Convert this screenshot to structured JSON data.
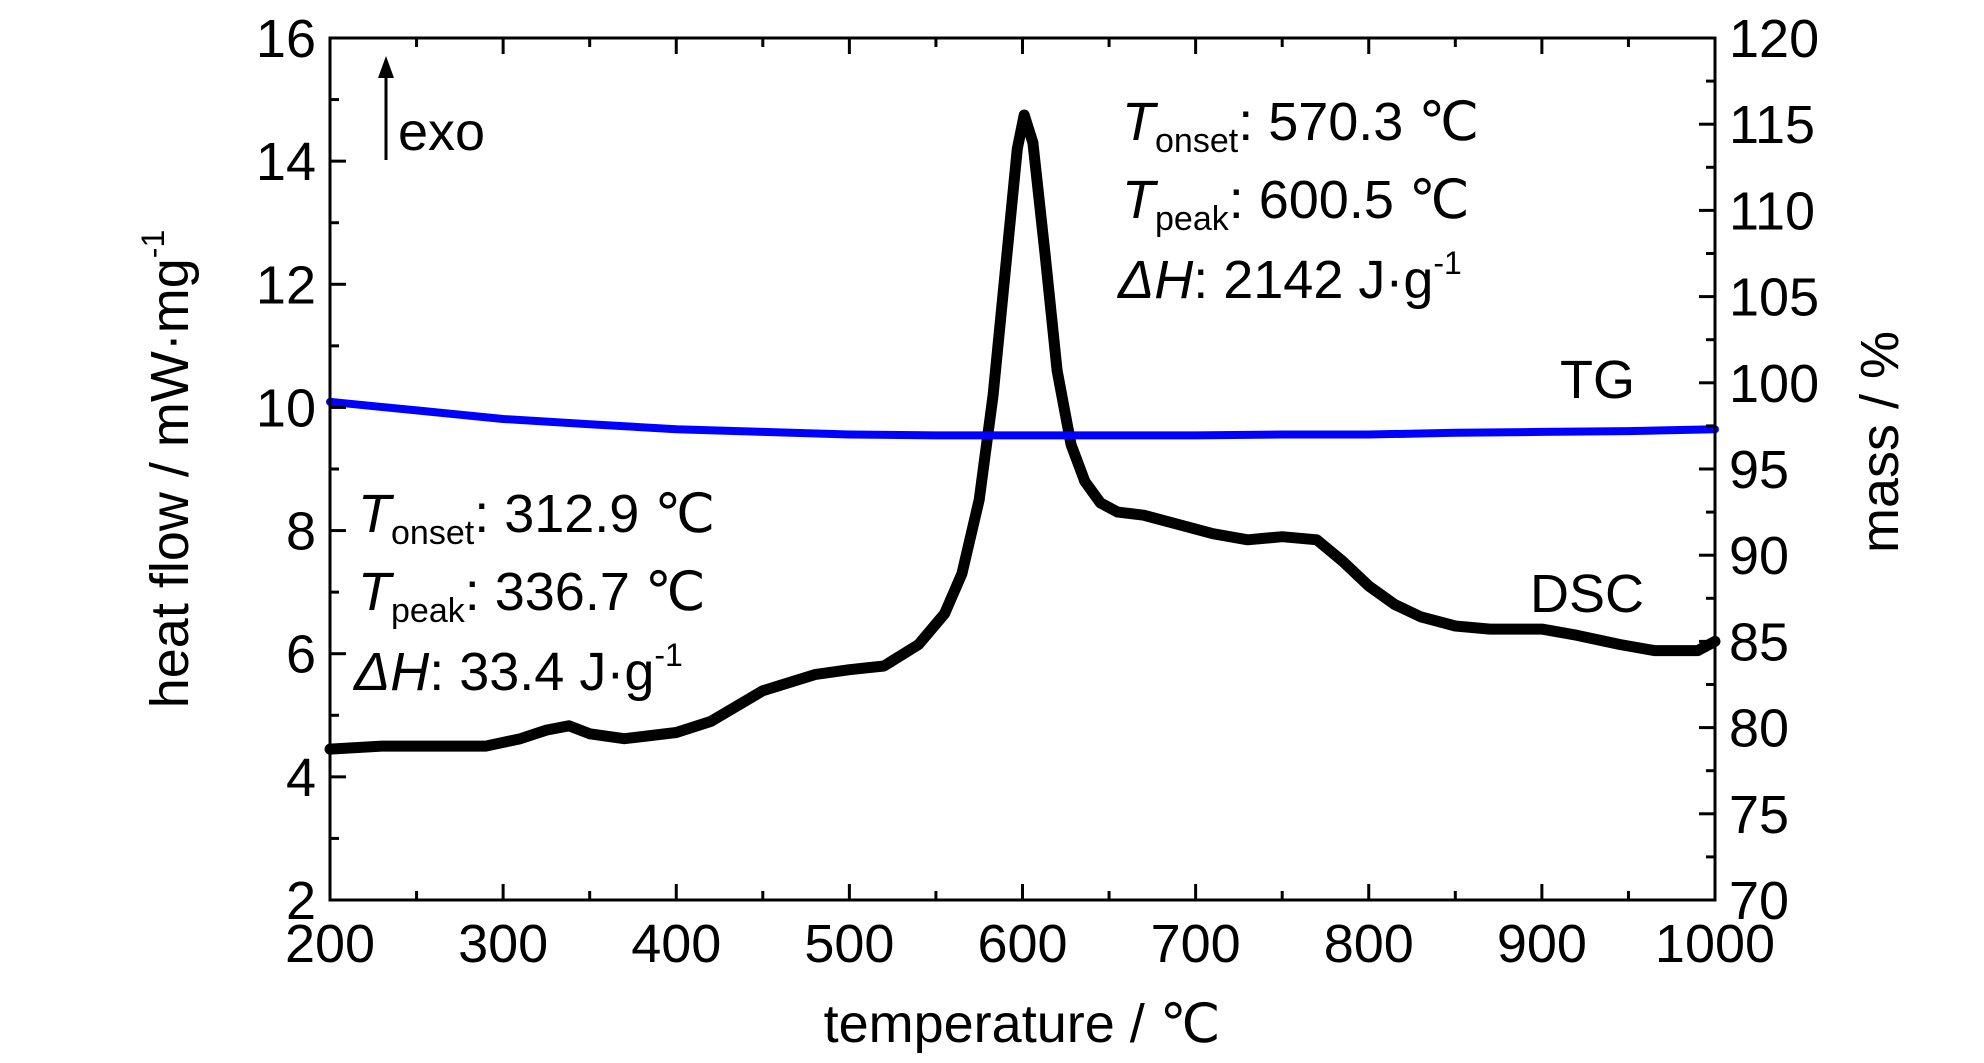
{
  "chart_data": {
    "type": "line",
    "x_axis": {
      "label": "temperature / ℃",
      "range": [
        200,
        1000
      ],
      "ticks": [
        200,
        300,
        400,
        500,
        600,
        700,
        800,
        900,
        1000
      ]
    },
    "y_left": {
      "label": "heat flow / mW·mg",
      "label_sup": "-1",
      "range": [
        2,
        16
      ],
      "ticks": [
        2,
        4,
        6,
        8,
        10,
        12,
        14,
        16
      ]
    },
    "y_right": {
      "label": "mass / %",
      "range": [
        70,
        120
      ],
      "ticks": [
        70,
        75,
        80,
        85,
        90,
        95,
        100,
        105,
        110,
        115,
        120
      ]
    },
    "exo_label": "exo",
    "series": [
      {
        "name": "DSC",
        "axis": "left",
        "color": "#000000",
        "x": [
          200,
          230,
          260,
          290,
          310,
          325,
          338,
          350,
          370,
          400,
          420,
          450,
          480,
          500,
          520,
          540,
          555,
          565,
          575,
          583,
          590,
          597,
          601,
          606,
          613,
          620,
          628,
          636,
          645,
          655,
          670,
          690,
          710,
          730,
          750,
          770,
          785,
          800,
          815,
          830,
          850,
          870,
          900,
          920,
          945,
          965,
          990,
          1000
        ],
        "y": [
          4.45,
          4.5,
          4.5,
          4.5,
          4.62,
          4.76,
          4.83,
          4.7,
          4.62,
          4.72,
          4.9,
          5.4,
          5.66,
          5.74,
          5.8,
          6.15,
          6.65,
          7.3,
          8.5,
          10.2,
          12.2,
          14.2,
          14.75,
          14.3,
          12.5,
          10.6,
          9.4,
          8.8,
          8.45,
          8.3,
          8.25,
          8.1,
          7.95,
          7.85,
          7.9,
          7.85,
          7.5,
          7.1,
          6.8,
          6.6,
          6.45,
          6.4,
          6.4,
          6.3,
          6.15,
          6.05,
          6.05,
          6.2
        ]
      },
      {
        "name": "TG",
        "axis": "right",
        "color": "#0000ff",
        "x": [
          200,
          250,
          300,
          350,
          400,
          450,
          500,
          550,
          600,
          650,
          700,
          750,
          800,
          850,
          900,
          950,
          1000
        ],
        "y": [
          98.9,
          98.4,
          97.9,
          97.6,
          97.3,
          97.15,
          97.0,
          96.95,
          96.95,
          96.95,
          96.95,
          97.0,
          97.0,
          97.1,
          97.15,
          97.2,
          97.3
        ]
      }
    ],
    "annotations": [
      {
        "lines": [
          {
            "sym": "T",
            "sub": "onset",
            "text": ": 570.3 ℃"
          },
          {
            "sym": "T",
            "sub": "peak",
            "text": ": 600.5 ℃"
          },
          {
            "sym": "ΔH",
            "text": ": 2142 J·g",
            "sup": "-1"
          }
        ]
      },
      {
        "lines": [
          {
            "sym": "T",
            "sub": "onset",
            "text": ": 312.9 ℃"
          },
          {
            "sym": "T",
            "sub": "peak",
            "text": ": 336.7 ℃"
          },
          {
            "sym": "ΔH",
            "text": ": 33.4 J·g",
            "sup": "-1"
          }
        ]
      }
    ],
    "grid": false,
    "legend": "inline labels"
  }
}
